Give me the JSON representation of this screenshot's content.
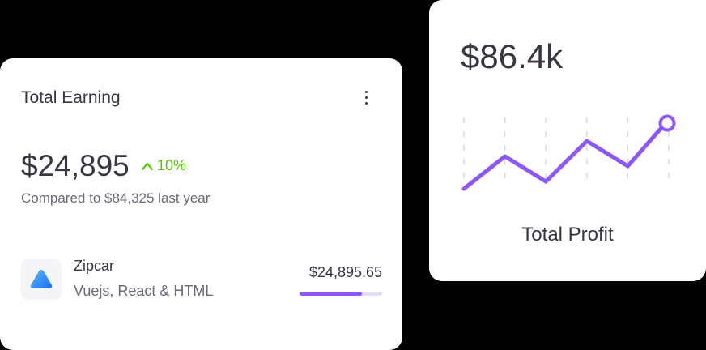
{
  "earning_card": {
    "title": "Total Earning",
    "menu_icon": "more-vertical-icon",
    "amount": "$24,895",
    "change": "10%",
    "change_icon": "chevron-up-icon",
    "change_color": "#56ca00",
    "comparison": "Compared to $84,325 last year",
    "items": [
      {
        "name": "Zipcar",
        "subtitle": "Vuejs, React & HTML",
        "amount": "$24,895.65",
        "progress_percent": 75,
        "icon": "zipcar-logo-icon",
        "color": "#8c57ff"
      }
    ]
  },
  "profit_card": {
    "value": "$86.4k",
    "label": "Total Profit",
    "chart_data": {
      "type": "line",
      "values": [
        0,
        40,
        9,
        59,
        28,
        81
      ],
      "color": "#8c57ff",
      "grid": "vertical-dashed",
      "end_marker": "circle"
    }
  }
}
